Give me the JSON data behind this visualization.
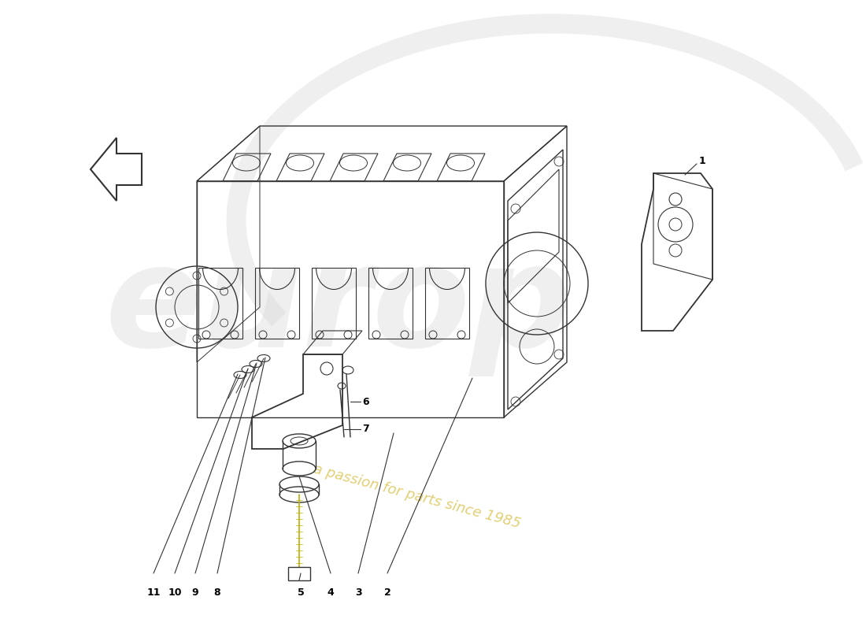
{
  "bg_color": "#ffffff",
  "line_color": "#333333",
  "line_width": 1.0,
  "watermark_color": "#cccccc",
  "watermark_alpha": 0.35,
  "tagline_color": "#c8a800",
  "tagline_alpha": 0.55
}
